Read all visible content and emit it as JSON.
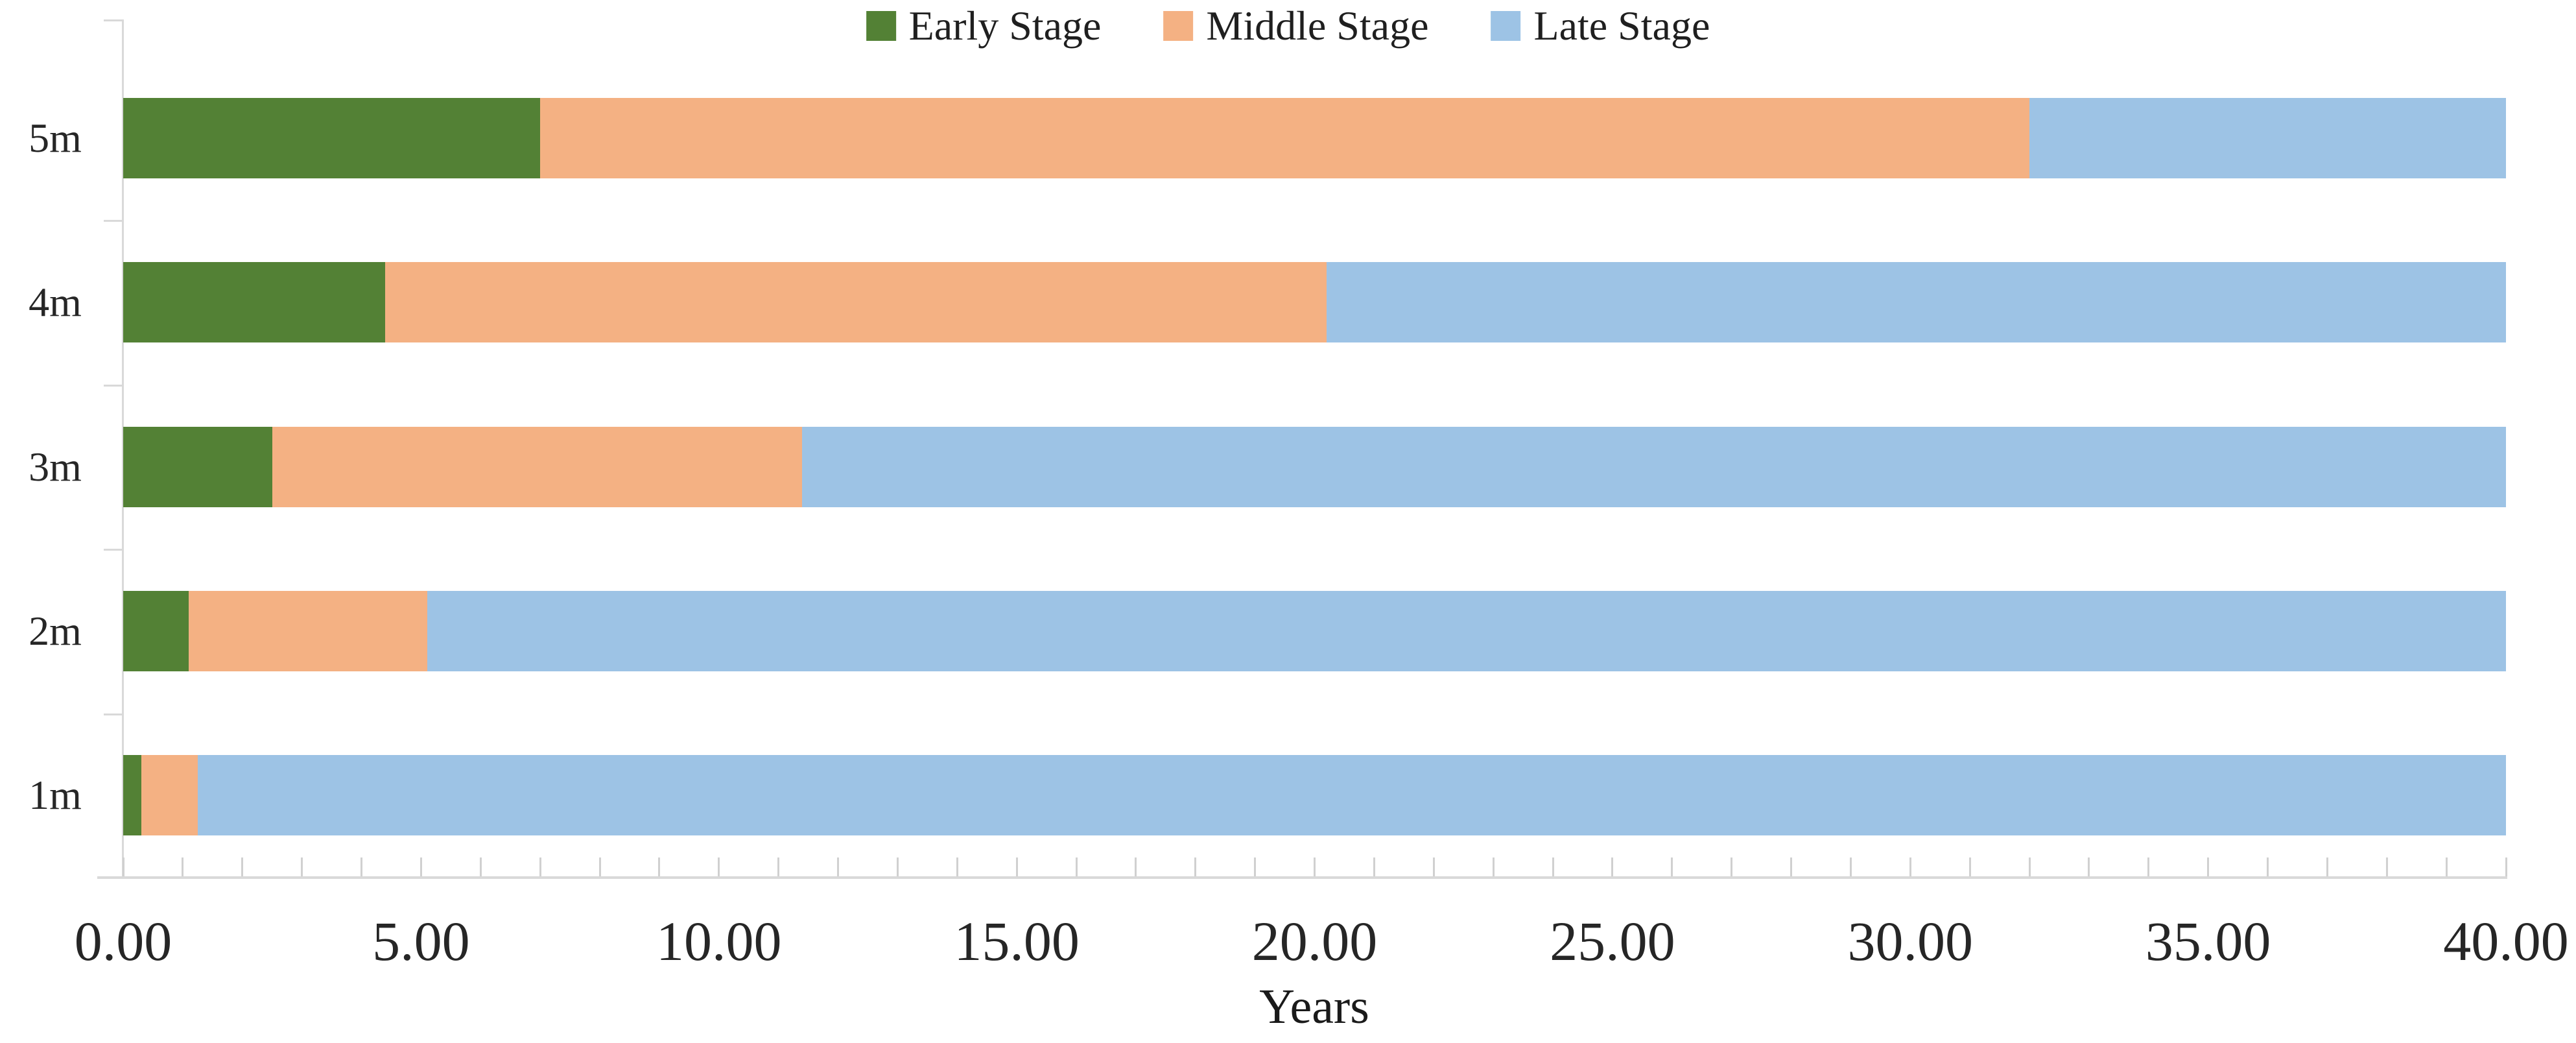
{
  "chart_data": {
    "type": "bar",
    "orientation": "horizontal-stacked",
    "title": "",
    "xlabel": "Years",
    "xlim": [
      0,
      40
    ],
    "x_major_tick_interval": 5,
    "x_minor_tick_interval": 1,
    "x_tick_labels": [
      "0.00",
      "5.00",
      "10.00",
      "15.00",
      "20.00",
      "25.00",
      "30.00",
      "35.00",
      "40.00"
    ],
    "categories": [
      "5m",
      "4m",
      "3m",
      "2m",
      "1m"
    ],
    "series": [
      {
        "name": "Early Stage",
        "color": "#538135",
        "values": [
          7.0,
          4.4,
          2.5,
          1.1,
          0.3
        ]
      },
      {
        "name": "Middle Stage",
        "color": "#F4B183",
        "values": [
          25.0,
          15.8,
          8.9,
          4.0,
          0.95
        ]
      },
      {
        "name": "Late Stage",
        "color": "#9DC3E5",
        "values": [
          8.0,
          19.8,
          28.6,
          34.9,
          38.75
        ]
      }
    ],
    "bar_total": 40,
    "legend_position": "top",
    "grid": false
  },
  "style": {
    "axis_line_color": "#D9D9D9",
    "tick_color": "#D0D0D0",
    "text_color": "#262626",
    "background": "#FFFFFF"
  }
}
